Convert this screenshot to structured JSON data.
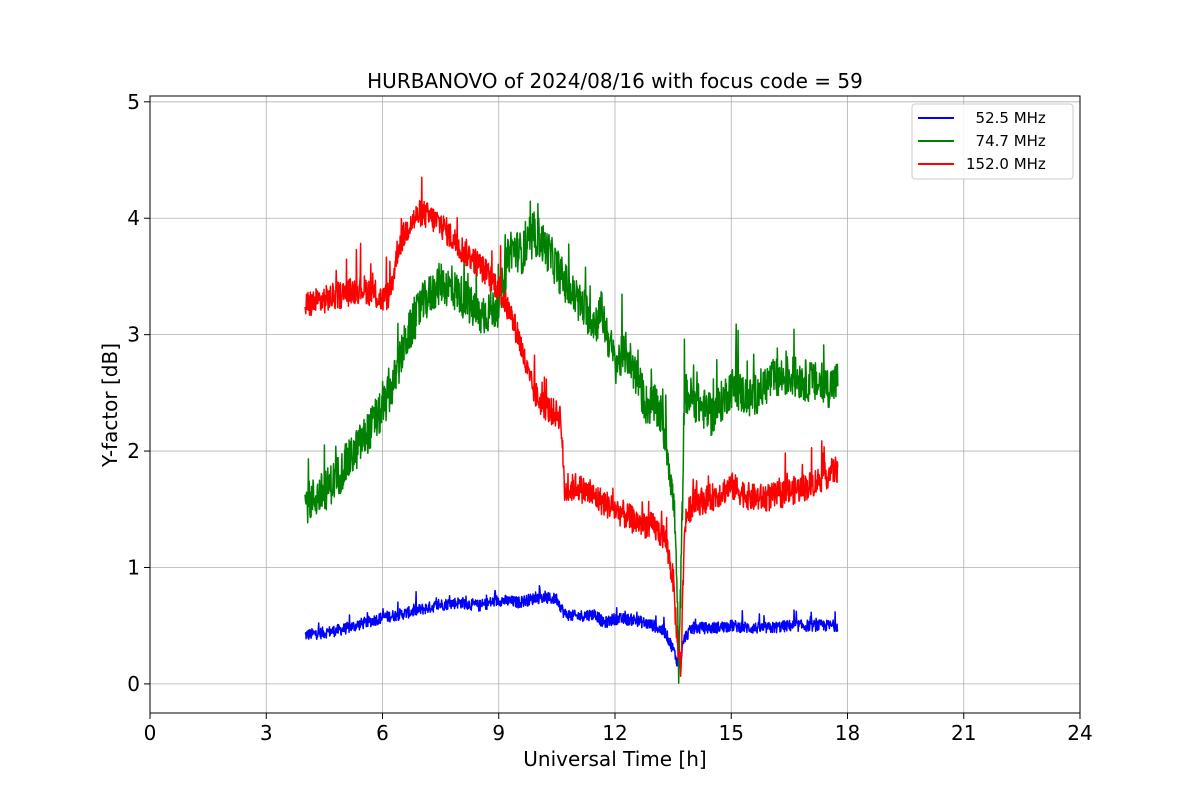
{
  "chart_data": {
    "type": "line",
    "title": "HURBANOVO of 2024/08/16 with focus code = 59",
    "xlabel": "Universal Time [h]",
    "ylabel": "Y-factor [dB]",
    "xlim": [
      0,
      24
    ],
    "ylim": [
      -0.25,
      5.05
    ],
    "xticks": [
      0,
      3,
      6,
      9,
      12,
      15,
      18,
      21,
      24
    ],
    "yticks": [
      0,
      1,
      2,
      3,
      4,
      5
    ],
    "grid": true,
    "legend_position": "top-right",
    "series": [
      {
        "name": "  52.5 MHz",
        "color": "#0000ff",
        "x": [
          4.0,
          4.5,
          5.0,
          5.5,
          6.0,
          6.5,
          7.0,
          7.5,
          8.0,
          8.5,
          9.0,
          9.5,
          10.0,
          10.5,
          10.7,
          11.0,
          11.5,
          11.7,
          12.0,
          12.5,
          13.0,
          13.3,
          13.5,
          13.65,
          13.8,
          14.0,
          14.5,
          15.0,
          15.5,
          16.0,
          16.5,
          17.0,
          17.5,
          17.75
        ],
        "y": [
          0.42,
          0.44,
          0.47,
          0.52,
          0.57,
          0.6,
          0.64,
          0.68,
          0.7,
          0.67,
          0.72,
          0.7,
          0.74,
          0.73,
          0.6,
          0.58,
          0.6,
          0.52,
          0.56,
          0.55,
          0.5,
          0.44,
          0.3,
          0.15,
          0.4,
          0.48,
          0.48,
          0.5,
          0.48,
          0.48,
          0.5,
          0.5,
          0.5,
          0.5
        ],
        "noise": 0.05
      },
      {
        "name": "  74.7 MHz",
        "color": "#008000",
        "x": [
          4.0,
          4.5,
          5.0,
          5.5,
          6.0,
          6.3,
          6.6,
          7.0,
          7.5,
          8.0,
          8.5,
          9.0,
          9.3,
          9.6,
          10.0,
          10.3,
          10.7,
          11.0,
          11.5,
          11.65,
          12.0,
          12.3,
          12.6,
          12.8,
          13.0,
          13.2,
          13.4,
          13.55,
          13.65,
          13.8,
          14.0,
          14.5,
          15.0,
          15.5,
          16.0,
          16.5,
          17.0,
          17.5,
          17.75
        ],
        "y": [
          1.55,
          1.65,
          1.85,
          2.1,
          2.35,
          2.6,
          2.95,
          3.25,
          3.45,
          3.35,
          3.15,
          3.25,
          3.75,
          3.7,
          3.85,
          3.7,
          3.45,
          3.3,
          3.1,
          3.2,
          2.75,
          2.85,
          2.6,
          2.4,
          2.4,
          2.3,
          1.9,
          1.4,
          0.1,
          2.5,
          2.45,
          2.3,
          2.55,
          2.45,
          2.6,
          2.65,
          2.6,
          2.55,
          2.6
        ],
        "noise": 0.18
      },
      {
        "name": "152.0 MHz",
        "color": "#ff0000",
        "x": [
          4.0,
          4.5,
          5.0,
          5.5,
          6.0,
          6.2,
          6.4,
          6.7,
          7.0,
          7.5,
          8.0,
          8.5,
          9.0,
          9.2,
          9.5,
          9.8,
          10.0,
          10.3,
          10.6,
          10.7,
          11.0,
          11.5,
          12.0,
          12.5,
          13.0,
          13.3,
          13.5,
          13.6,
          13.7,
          13.8,
          14.0,
          14.5,
          15.0,
          15.5,
          16.0,
          16.5,
          17.0,
          17.5,
          17.75
        ],
        "y": [
          3.25,
          3.3,
          3.35,
          3.4,
          3.3,
          3.35,
          3.75,
          3.95,
          4.05,
          3.95,
          3.75,
          3.6,
          3.4,
          3.25,
          3.0,
          2.6,
          2.45,
          2.35,
          2.3,
          1.65,
          1.7,
          1.6,
          1.5,
          1.4,
          1.35,
          1.25,
          0.9,
          0.4,
          0.12,
          1.4,
          1.55,
          1.6,
          1.7,
          1.6,
          1.6,
          1.65,
          1.7,
          1.8,
          1.85
        ],
        "noise": 0.12
      }
    ]
  }
}
